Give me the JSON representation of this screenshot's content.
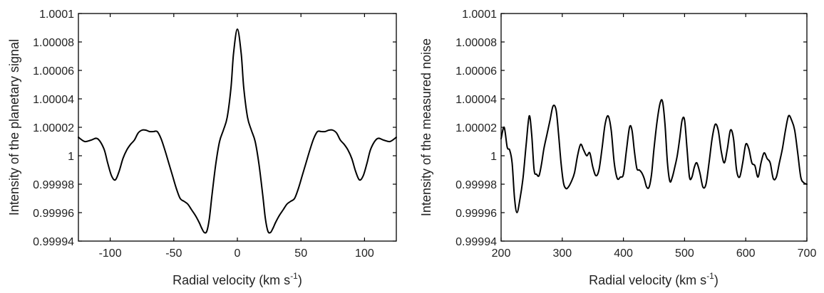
{
  "chart_data": [
    {
      "type": "line",
      "xlabel": "Radial velocity (km s",
      "xlabel_sup": "-1",
      "xlabel_end": ")",
      "ylabel": "Intensity of the planetary signal",
      "xlim": [
        -125,
        125
      ],
      "ylim": [
        0.99994,
        1.0001
      ],
      "xticks": [
        -100,
        -50,
        0,
        50,
        100
      ],
      "xtick_labels": [
        "-100",
        "-50",
        "0",
        "50",
        "100"
      ],
      "yticks": [
        0.99994,
        0.99996,
        0.99998,
        1,
        1.00002,
        1.00004,
        1.00006,
        1.00008,
        1.0001
      ],
      "ytick_labels": [
        "0.99994",
        "0.99996",
        "0.99998",
        "1",
        "1.00002",
        "1.00004",
        "1.00006",
        "1.00008",
        "1.0001"
      ],
      "grid": false,
      "series": [
        {
          "x": [
            -125,
            -120,
            -115,
            -110,
            -105,
            -102,
            -99,
            -96,
            -93,
            -90,
            -87,
            -84,
            -81,
            -78,
            -75,
            -72,
            -69,
            -66,
            -63,
            -60,
            -57,
            -54,
            -51,
            -48,
            -45,
            -42,
            -39,
            -36,
            -33,
            -30,
            -28,
            -26,
            -24,
            -22,
            -20,
            -17,
            -14,
            -11,
            -8,
            -5,
            -3,
            0,
            3,
            5,
            8,
            11,
            14,
            17,
            20,
            22,
            24,
            26,
            28,
            30,
            33,
            36,
            39,
            42,
            45,
            48,
            51,
            54,
            57,
            60,
            63,
            66,
            69,
            72,
            75,
            78,
            81,
            84,
            87,
            90,
            93,
            96,
            99,
            102,
            105,
            110,
            115,
            120,
            125
          ],
          "y": [
            1.000013,
            1.00001,
            1.000011,
            1.000012,
            1.000005,
            0.999995,
            0.999986,
            0.999983,
            0.999989,
            0.999998,
            1.000004,
            1.000008,
            1.000011,
            1.000016,
            1.000018,
            1.000018,
            1.000017,
            1.000017,
            1.000017,
            1.000012,
            1.000004,
            0.999995,
            0.999986,
            0.999977,
            0.99997,
            0.999968,
            0.999966,
            0.999962,
            0.999958,
            0.999953,
            0.999949,
            0.999946,
            0.999947,
            0.999956,
            0.999972,
            0.999994,
            1.00001,
            1.000018,
            1.000027,
            1.000048,
            1.000072,
            1.000089,
            1.000072,
            1.000048,
            1.000027,
            1.000018,
            1.00001,
            0.999994,
            0.999972,
            0.999956,
            0.999947,
            0.999946,
            0.999949,
            0.999953,
            0.999958,
            0.999962,
            0.999966,
            0.999968,
            0.99997,
            0.999977,
            0.999986,
            0.999995,
            1.000004,
            1.000012,
            1.000017,
            1.000017,
            1.000017,
            1.000018,
            1.000018,
            1.000016,
            1.000011,
            1.000008,
            1.000004,
            0.999998,
            0.999989,
            0.999983,
            0.999986,
            0.999995,
            1.000005,
            1.000012,
            1.000011,
            1.00001,
            1.000013
          ]
        }
      ]
    },
    {
      "type": "line",
      "xlabel": "Radial velocity (km s",
      "xlabel_sup": "-1",
      "xlabel_end": ")",
      "ylabel": "Intensity of the measured noise",
      "xlim": [
        200,
        700
      ],
      "ylim": [
        0.99994,
        1.0001
      ],
      "xticks": [
        200,
        300,
        400,
        500,
        600,
        700
      ],
      "xtick_labels": [
        "200",
        "300",
        "400",
        "500",
        "600",
        "700"
      ],
      "yticks": [
        0.99994,
        0.99996,
        0.99998,
        1,
        1.00002,
        1.00004,
        1.00006,
        1.00008,
        1.0001
      ],
      "ytick_labels": [
        "0.99994",
        "0.99996",
        "0.99998",
        "1",
        "1.00002",
        "1.00004",
        "1.00006",
        "1.00008",
        "1.0001"
      ],
      "grid": false,
      "series": [
        {
          "x": [
            200,
            205,
            210,
            214,
            218,
            222,
            226,
            231,
            236,
            241,
            246,
            250,
            254,
            258,
            262,
            266,
            270,
            275,
            280,
            285,
            290,
            294,
            298,
            302,
            306,
            310,
            315,
            320,
            325,
            330,
            335,
            340,
            345,
            350,
            355,
            360,
            365,
            370,
            375,
            380,
            385,
            390,
            395,
            400,
            405,
            410,
            414,
            418,
            422,
            426,
            430,
            434,
            438,
            442,
            446,
            450,
            455,
            460,
            464,
            468,
            472,
            476,
            480,
            484,
            488,
            492,
            496,
            500,
            504,
            508,
            512,
            516,
            520,
            525,
            530,
            535,
            540,
            545,
            550,
            555,
            560,
            565,
            570,
            575,
            580,
            585,
            590,
            595,
            600,
            605,
            610,
            615,
            620,
            625,
            630,
            635,
            640,
            645,
            650,
            655,
            660,
            665,
            670,
            675,
            680,
            685,
            690,
            695,
            700
          ],
          "y": [
            1.000012,
            1.00002,
            1.000006,
            1.000004,
            0.999995,
            0.99997,
            0.99996,
            0.99997,
            0.999985,
            1.000008,
            1.000028,
            1.000015,
            0.99999,
            0.999987,
            0.999986,
            0.999994,
            1.000005,
            1.000015,
            1.000025,
            1.000035,
            1.000032,
            1.000015,
            0.999995,
            0.999981,
            0.999977,
            0.999978,
            0.999982,
            0.999988,
            1.0,
            1.000008,
            1.000004,
            1.0,
            1.000002,
            0.999992,
            0.999986,
            0.99999,
            1.000005,
            1.000022,
            1.000028,
            1.000018,
            0.999995,
            0.999984,
            0.999985,
            0.999987,
            1.000004,
            1.00002,
            1.000018,
            1.000003,
            0.999991,
            0.99999,
            0.999988,
            0.999984,
            0.999978,
            0.999978,
            0.999987,
            1.000005,
            1.000024,
            1.000037,
            1.000038,
            1.000022,
            0.999995,
            0.999982,
            0.999985,
            0.999992,
            1.0,
            1.000012,
            1.000025,
            1.000025,
            1.000005,
            0.999985,
            0.999985,
            0.999992,
            0.999995,
            0.999988,
            0.999978,
            0.99998,
            0.999995,
            1.000012,
            1.000022,
            1.000018,
            1.000003,
            0.999995,
            1.000005,
            1.000018,
            1.000012,
            0.99999,
            0.999985,
            0.999995,
            1.000008,
            1.000005,
            0.999995,
            0.999993,
            0.999985,
            0.999995,
            1.000002,
            0.999998,
            0.999995,
            0.999984,
            0.999985,
            0.999995,
            1.000005,
            1.000018,
            1.000028,
            1.000025,
            1.000018,
            1.000002,
            0.999985,
            0.999981,
            0.99998
          ]
        }
      ]
    }
  ]
}
